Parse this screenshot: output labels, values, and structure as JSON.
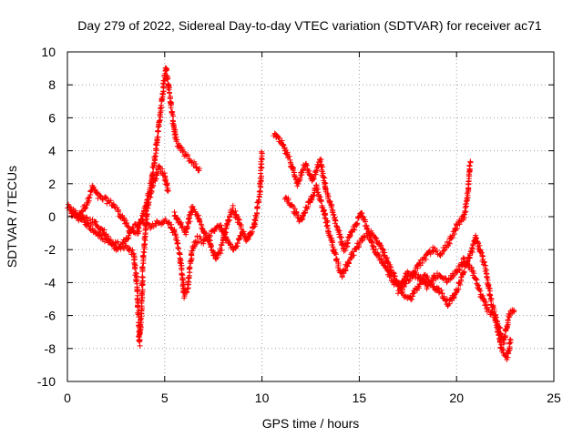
{
  "chart_data": {
    "type": "scatter",
    "title": "Day 279 of 2022, Sidereal Day-to-day VTEC variation (SDTVAR) for receiver ac71",
    "xlabel": "GPS time / hours",
    "ylabel": "SDTVAR / TECUs",
    "xlim": [
      0,
      25
    ],
    "ylim": [
      -10,
      10
    ],
    "xticks": [
      0,
      5,
      10,
      15,
      20,
      25
    ],
    "yticks": [
      -10,
      -8,
      -6,
      -4,
      -2,
      0,
      2,
      4,
      6,
      8,
      10
    ],
    "grid": true,
    "marker": "plus",
    "color": "#ff0000",
    "series": [
      {
        "name": "SDTVAR",
        "trace_segments": [
          [
            [
              0.0,
              0.6
            ],
            [
              0.3,
              0.3
            ],
            [
              0.6,
              0.1
            ],
            [
              1.0,
              0.8
            ],
            [
              1.3,
              1.8
            ],
            [
              1.6,
              1.2
            ],
            [
              2.0,
              1.0
            ],
            [
              2.4,
              0.7
            ],
            [
              2.8,
              0.0
            ],
            [
              3.2,
              -0.8
            ],
            [
              3.6,
              -1.0
            ],
            [
              4.0,
              0.5
            ],
            [
              4.3,
              2.0
            ],
            [
              4.6,
              4.5
            ],
            [
              4.9,
              7.5
            ],
            [
              5.05,
              9.1
            ],
            [
              5.2,
              8.0
            ],
            [
              5.4,
              6.0
            ],
            [
              5.6,
              4.5
            ],
            [
              6.0,
              3.8
            ],
            [
              6.5,
              3.2
            ],
            [
              6.8,
              2.8
            ]
          ],
          [
            [
              0.1,
              0.3
            ],
            [
              0.5,
              0.0
            ],
            [
              0.9,
              -0.3
            ],
            [
              1.3,
              -0.8
            ],
            [
              1.8,
              -1.3
            ],
            [
              2.4,
              -1.6
            ],
            [
              3.0,
              -1.8
            ],
            [
              3.4,
              -2.2
            ],
            [
              3.6,
              -4.5
            ],
            [
              3.7,
              -7.7
            ],
            [
              3.8,
              -6.0
            ],
            [
              3.9,
              -2.5
            ],
            [
              4.1,
              0.5
            ],
            [
              4.4,
              2.0
            ],
            [
              4.7,
              3.0
            ],
            [
              5.0,
              2.5
            ],
            [
              5.2,
              1.5
            ]
          ],
          [
            [
              0.2,
              0.4
            ],
            [
              0.6,
              0.0
            ],
            [
              1.0,
              -0.2
            ],
            [
              1.4,
              -0.4
            ],
            [
              1.8,
              -0.8
            ],
            [
              2.2,
              -1.5
            ],
            [
              2.6,
              -2.0
            ],
            [
              3.0,
              -1.4
            ],
            [
              3.4,
              -0.6
            ],
            [
              3.8,
              -0.3
            ],
            [
              4.2,
              -0.6
            ],
            [
              4.6,
              -0.4
            ],
            [
              5.0,
              -0.2
            ],
            [
              5.3,
              -0.5
            ],
            [
              5.6,
              -1.2
            ],
            [
              5.8,
              -2.5
            ],
            [
              6.0,
              -4.8
            ],
            [
              6.2,
              -4.2
            ],
            [
              6.4,
              -2.0
            ],
            [
              6.7,
              -1.3
            ],
            [
              7.0,
              -1.5
            ],
            [
              7.4,
              -1.0
            ],
            [
              7.8,
              -0.5
            ],
            [
              8.2,
              -1.5
            ],
            [
              8.6,
              -2.0
            ],
            [
              9.0,
              -1.0
            ]
          ],
          [
            [
              5.5,
              0.2
            ],
            [
              5.8,
              -0.4
            ],
            [
              6.1,
              -1.0
            ],
            [
              6.4,
              0.5
            ],
            [
              6.7,
              0.0
            ],
            [
              7.0,
              -0.8
            ],
            [
              7.3,
              -1.5
            ],
            [
              7.6,
              -2.6
            ],
            [
              7.9,
              -2.0
            ],
            [
              8.2,
              -0.5
            ],
            [
              8.5,
              0.5
            ],
            [
              8.8,
              -0.3
            ],
            [
              9.2,
              -1.5
            ],
            [
              9.6,
              -0.5
            ],
            [
              9.9,
              1.5
            ],
            [
              10.0,
              4.0
            ]
          ],
          [
            [
              10.6,
              5.0
            ],
            [
              11.0,
              4.5
            ],
            [
              11.4,
              3.5
            ],
            [
              11.8,
              2.0
            ],
            [
              12.2,
              3.2
            ],
            [
              12.6,
              2.2
            ],
            [
              13.0,
              3.4
            ],
            [
              13.3,
              1.5
            ],
            [
              13.6,
              0.5
            ],
            [
              13.9,
              -0.8
            ],
            [
              14.2,
              -2.0
            ],
            [
              14.5,
              -1.3
            ],
            [
              14.8,
              -0.5
            ],
            [
              15.1,
              0.2
            ],
            [
              15.4,
              -0.6
            ],
            [
              15.7,
              -1.8
            ],
            [
              16.0,
              -2.5
            ],
            [
              16.4,
              -3.2
            ],
            [
              16.8,
              -4.0
            ],
            [
              17.2,
              -4.2
            ],
            [
              17.6,
              -3.8
            ],
            [
              18.0,
              -3.0
            ],
            [
              18.4,
              -2.5
            ],
            [
              18.8,
              -2.0
            ],
            [
              19.2,
              -2.2
            ],
            [
              19.6,
              -1.6
            ],
            [
              20.0,
              -0.6
            ],
            [
              20.4,
              0.0
            ],
            [
              20.6,
              1.5
            ],
            [
              20.7,
              3.4
            ]
          ],
          [
            [
              11.2,
              1.2
            ],
            [
              11.6,
              0.5
            ],
            [
              12.0,
              -0.3
            ],
            [
              12.4,
              0.8
            ],
            [
              12.8,
              1.8
            ],
            [
              13.2,
              0.2
            ],
            [
              13.5,
              -1.2
            ],
            [
              13.8,
              -2.5
            ],
            [
              14.1,
              -3.6
            ],
            [
              14.4,
              -2.8
            ],
            [
              14.8,
              -2.0
            ],
            [
              15.2,
              -1.2
            ],
            [
              15.6,
              -1.0
            ],
            [
              16.0,
              -1.6
            ],
            [
              16.4,
              -2.6
            ],
            [
              16.8,
              -3.6
            ],
            [
              17.2,
              -4.6
            ],
            [
              17.6,
              -5.0
            ],
            [
              18.0,
              -4.3
            ],
            [
              18.4,
              -3.6
            ],
            [
              18.8,
              -4.2
            ],
            [
              19.2,
              -4.6
            ],
            [
              19.6,
              -5.3
            ],
            [
              20.0,
              -4.5
            ],
            [
              20.4,
              -3.2
            ],
            [
              20.8,
              -2.0
            ],
            [
              21.0,
              -1.2
            ],
            [
              21.2,
              -2.0
            ],
            [
              21.5,
              -3.2
            ],
            [
              21.8,
              -5.2
            ],
            [
              22.1,
              -6.5
            ],
            [
              22.4,
              -7.6
            ],
            [
              22.7,
              -6.0
            ],
            [
              23.0,
              -5.6
            ]
          ],
          [
            [
              17.0,
              -4.5
            ],
            [
              17.5,
              -3.3
            ],
            [
              18.0,
              -3.6
            ],
            [
              18.5,
              -4.2
            ],
            [
              19.0,
              -3.5
            ],
            [
              19.5,
              -3.9
            ],
            [
              20.0,
              -3.4
            ],
            [
              20.4,
              -2.6
            ],
            [
              20.8,
              -3.2
            ],
            [
              21.2,
              -4.6
            ],
            [
              21.6,
              -5.6
            ],
            [
              22.0,
              -6.2
            ],
            [
              22.3,
              -8.0
            ],
            [
              22.6,
              -8.5
            ],
            [
              22.8,
              -7.4
            ]
          ]
        ]
      }
    ]
  }
}
